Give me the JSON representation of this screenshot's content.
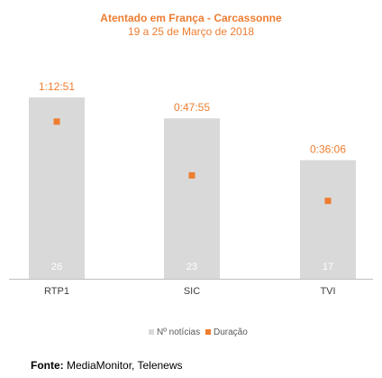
{
  "chart_data": {
    "type": "bar",
    "title": "Atentado em França - Carcassonne",
    "subtitle": "19 a 25 de Março de 2018",
    "categories": [
      "RTP1",
      "SIC",
      "TVI"
    ],
    "series": [
      {
        "name": "Nº notícias",
        "type": "bar",
        "values": [
          26,
          23,
          17
        ],
        "color": "#D9D9D9"
      },
      {
        "name": "Duração",
        "type": "scatter",
        "values": [
          "1:12:51",
          "0:47:55",
          "0:36:06"
        ],
        "color": "#ED7D31"
      }
    ],
    "bar_ylim": [
      0,
      26
    ],
    "duration_ylim_seconds": [
      0,
      7000
    ],
    "legend_position": "bottom",
    "grid": false
  },
  "source": {
    "label": "Fonte:",
    "text": "MediaMonitor, Telenews"
  }
}
